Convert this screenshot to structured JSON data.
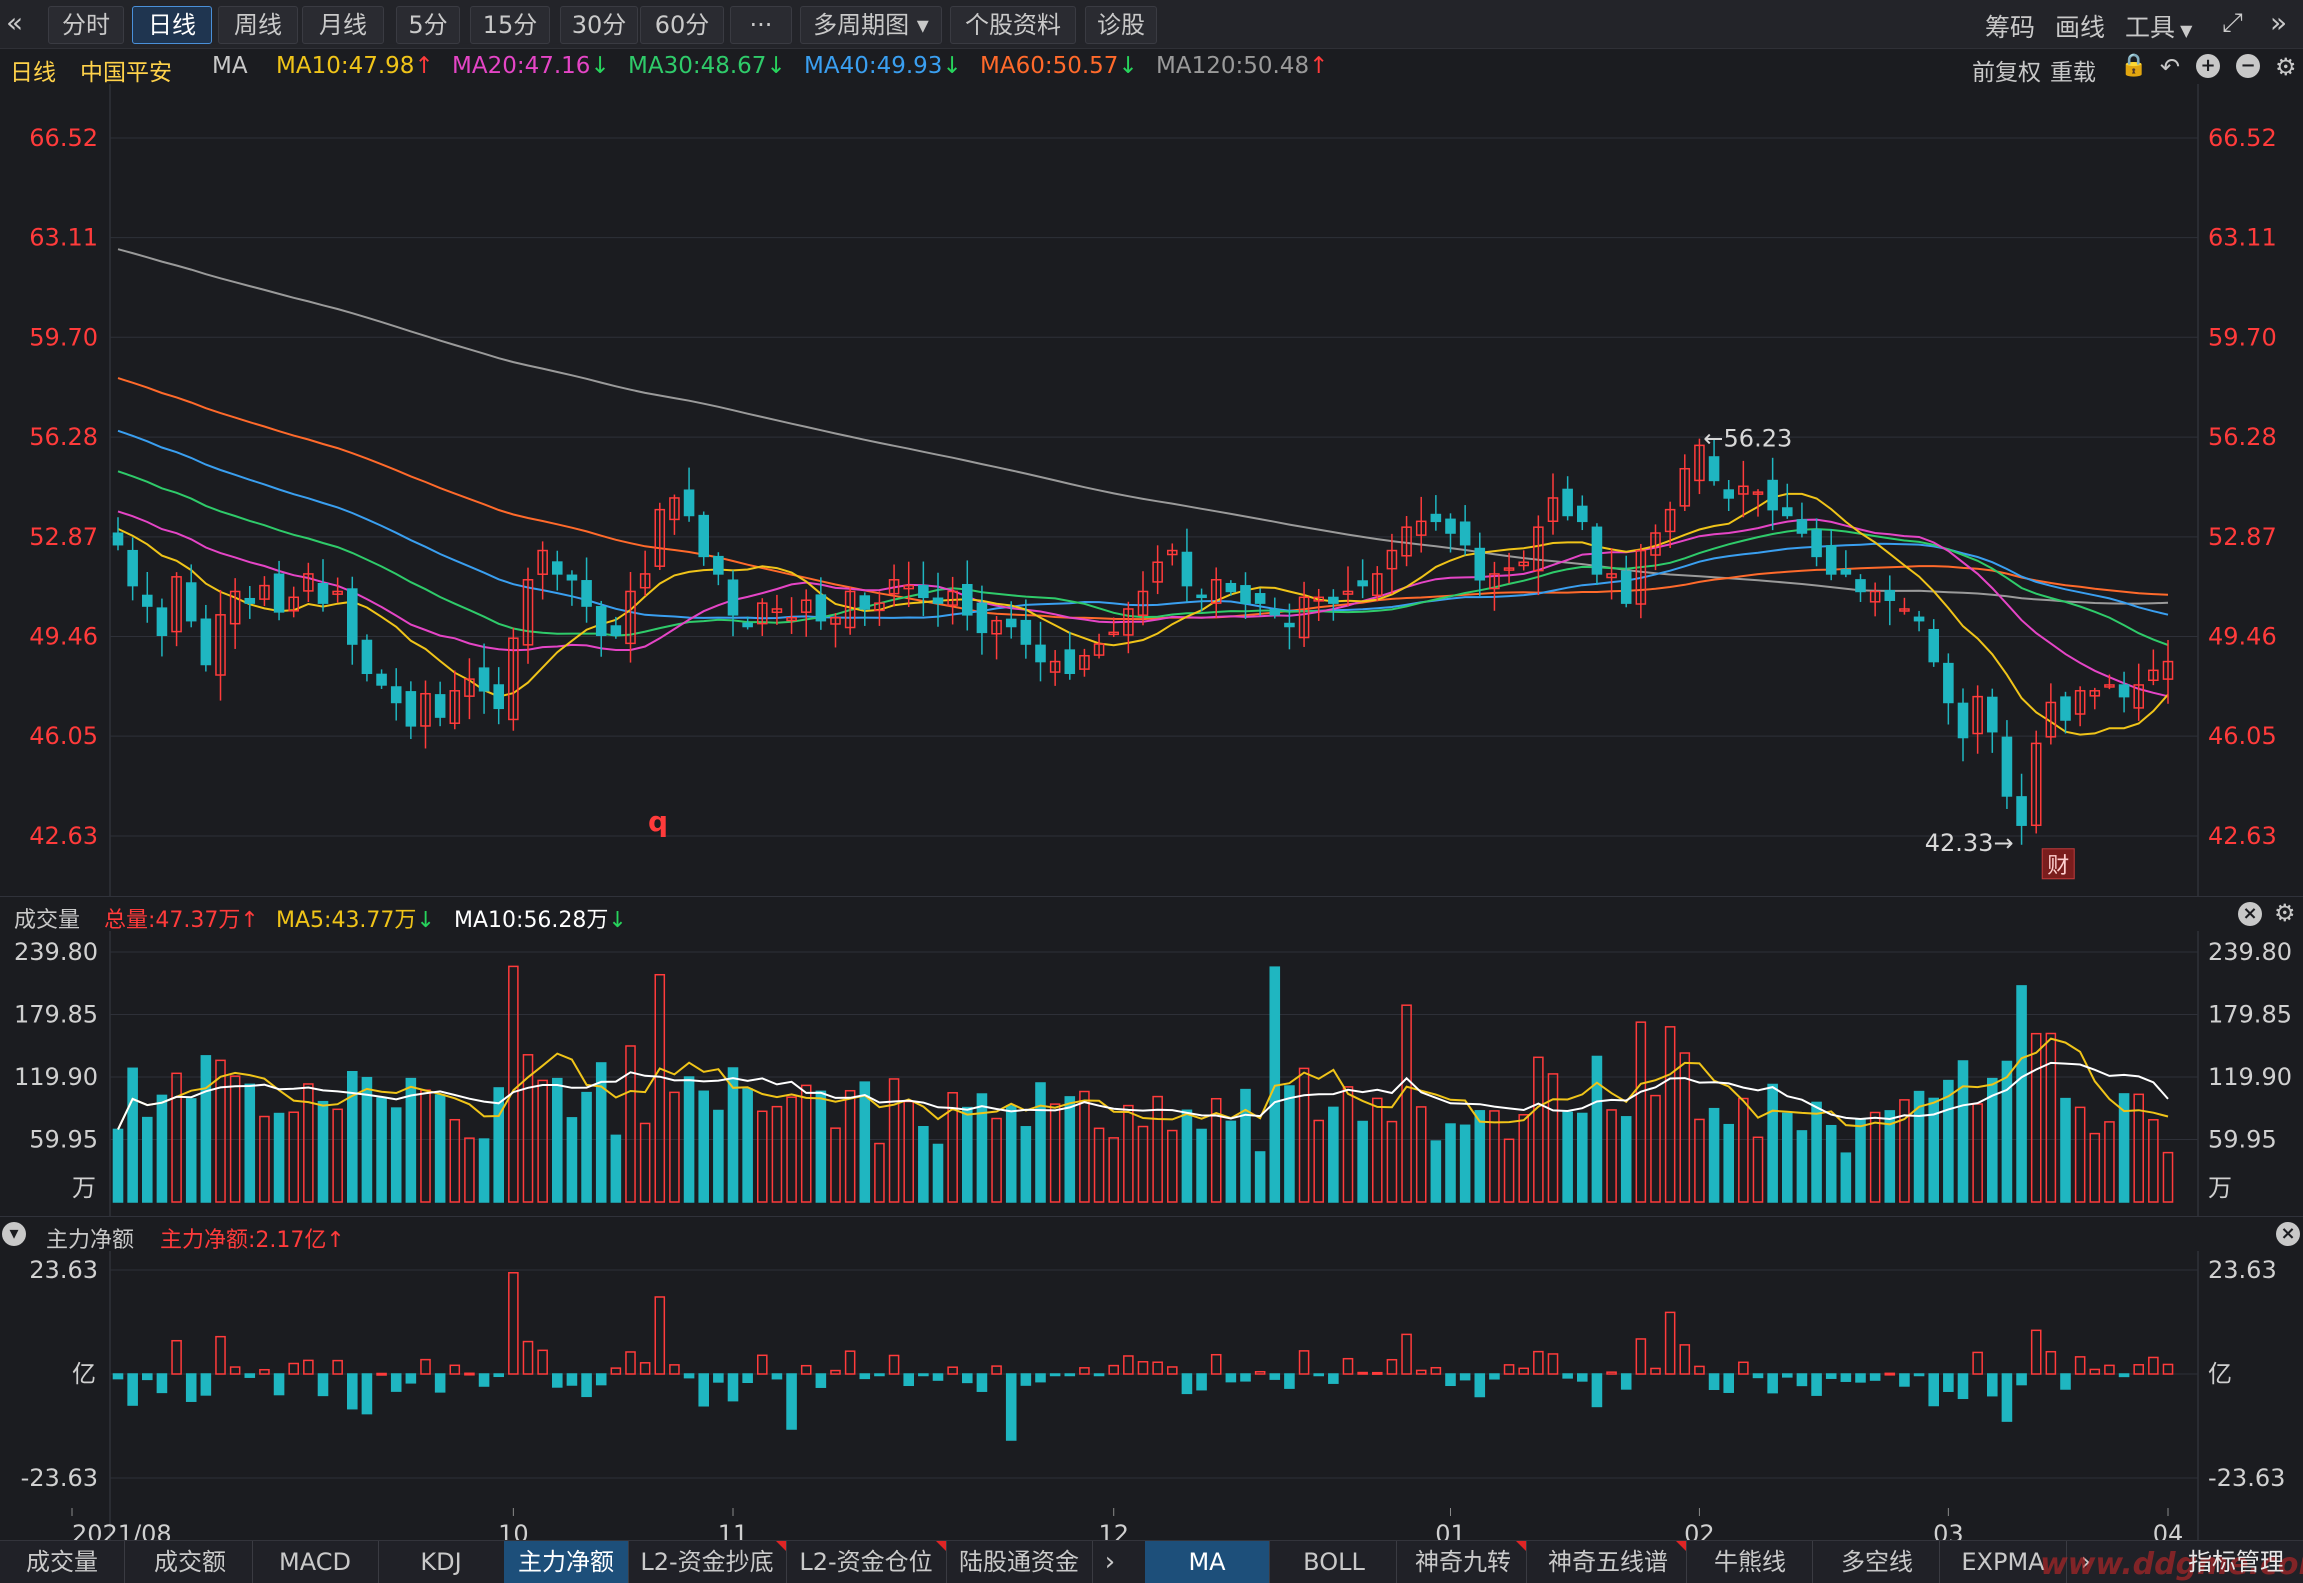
{
  "toolbar": {
    "back_icon": "double-chevron-left-icon",
    "tabs": [
      {
        "label": "分时",
        "active": false
      },
      {
        "label": "日线",
        "active": true
      },
      {
        "label": "周线",
        "active": false
      },
      {
        "label": "月线",
        "active": false
      },
      {
        "label": "5分",
        "active": false
      },
      {
        "label": "15分",
        "active": false
      },
      {
        "label": "30分",
        "active": false
      },
      {
        "label": "60分",
        "active": false
      },
      {
        "label": "···",
        "active": false
      },
      {
        "label": "多周期图",
        "active": false
      },
      {
        "label": "个股资料",
        "active": false
      },
      {
        "label": "诊股",
        "active": false
      }
    ],
    "right": {
      "chip": "筹码",
      "draw": "画线",
      "tools": "工具"
    }
  },
  "mabar": {
    "period": "日线",
    "stock": "中国平安",
    "indicator": "MA",
    "ma10": "MA10:47.98",
    "ma20": "MA20:47.16",
    "ma30": "MA30:48.67",
    "ma40": "MA40:49.93",
    "ma60": "MA60:50.57",
    "ma120": "MA120:50.48",
    "adjust": "前复权",
    "overlay": "重载"
  },
  "colors": {
    "up": "#ff3b3b",
    "down": "#1fb6c1",
    "ma10": "#f0c419",
    "ma20": "#e545c6",
    "ma30": "#2fcb6a",
    "ma40": "#3a9ff0",
    "ma60": "#ff6a2b",
    "ma120": "#9a9a9a",
    "ma5vol": "#f0c419",
    "ma10vol": "#ffffff"
  },
  "volume_panel": {
    "title": "成交量",
    "total": "总量:47.37万",
    "ma5": "MA5:43.77万",
    "ma10": "MA10:56.28万"
  },
  "fund_panel": {
    "title": "主力净额",
    "value": "主力净额:2.17亿"
  },
  "bottom_tabs_left": [
    "成交量",
    "成交额",
    "MACD",
    "KDJ",
    "主力净额",
    "L2-资金抄底",
    "L2-资金仓位",
    "陆股通资金"
  ],
  "bottom_tabs_left_active": "主力净额",
  "bottom_tabs_right": [
    "MA",
    "BOLL",
    "神奇九转",
    "神奇五线谱",
    "牛熊线",
    "多空线",
    "EXPMA"
  ],
  "bottom_tabs_right_active": "MA",
  "bottom_manage": "指标管理",
  "watermark": "www.ddgme.com",
  "chart_data": [
    {
      "type": "candlestick",
      "panel": "price",
      "y_ticks": [
        "66.52",
        "63.11",
        "59.70",
        "56.28",
        "52.87",
        "49.46",
        "46.05",
        "42.63"
      ],
      "ylim": [
        41.0,
        68.0
      ],
      "x_ticks": [
        "2021/08",
        "10",
        "11",
        "12",
        "01",
        "02",
        "03",
        "04"
      ],
      "annotations": {
        "high": "←56.23",
        "low": "42.33→",
        "finance_badge": "财",
        "marker": "q"
      },
      "closes": [
        52.6,
        51.2,
        50.5,
        49.5,
        51.5,
        50.0,
        48.5,
        50.2,
        51.0,
        50.6,
        51.2,
        50.3,
        50.8,
        51.6,
        50.6,
        51.0,
        49.2,
        48.2,
        47.8,
        47.2,
        46.4,
        47.5,
        46.7,
        47.6,
        48.0,
        47.6,
        47.0,
        49.4,
        51.4,
        52.4,
        51.6,
        51.4,
        50.5,
        49.5,
        49.5,
        51.0,
        51.6,
        53.8,
        54.2,
        53.6,
        52.2,
        51.6,
        50.2,
        49.8,
        50.6,
        50.4,
        50.1,
        50.7,
        50.0,
        50.1,
        51.0,
        50.4,
        50.6,
        51.4,
        51.2,
        50.8,
        50.6,
        51.0,
        50.2,
        49.6,
        50.0,
        49.8,
        49.2,
        48.6,
        48.6,
        48.2,
        48.8,
        49.2,
        49.6,
        50.4,
        51.0,
        52.0,
        52.4,
        51.2,
        50.8,
        51.4,
        51.0,
        50.6,
        50.6,
        50.2,
        49.8,
        50.8,
        50.8,
        50.6,
        51.0,
        51.2,
        51.6,
        52.4,
        53.2,
        53.4,
        53.4,
        53.0,
        52.6,
        51.4,
        51.6,
        51.8,
        52.0,
        53.2,
        54.2,
        53.6,
        53.4,
        51.6,
        51.6,
        50.6,
        52.4,
        53.0,
        53.8,
        55.2,
        56.0,
        54.8,
        54.2,
        54.6,
        54.4,
        53.8,
        53.6,
        53.0,
        52.2,
        51.6,
        51.6,
        51.0,
        51.0,
        50.7,
        50.4,
        50.0,
        48.6,
        47.2,
        46.0,
        47.4,
        46.2,
        44.0,
        43.0,
        45.8,
        47.2,
        46.6,
        47.6,
        47.6,
        47.8,
        47.4,
        47.8,
        48.3,
        48.6
      ]
    },
    {
      "type": "bar",
      "panel": "volume",
      "y_ticks": [
        "239.80",
        "179.85",
        "119.90",
        "59.95"
      ],
      "unit": "万",
      "ylim": [
        0,
        239.8
      ]
    },
    {
      "type": "bar",
      "panel": "main_net_inflow",
      "y_ticks": [
        "23.63",
        "-23.63"
      ],
      "unit": "亿",
      "ylim": [
        -23.63,
        23.63
      ]
    }
  ]
}
